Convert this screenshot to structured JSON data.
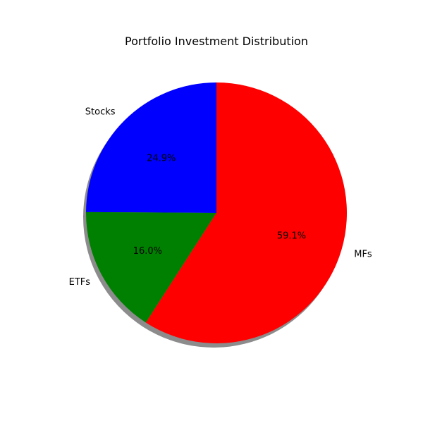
{
  "chart_data": {
    "type": "pie",
    "title": "Portfolio Investment Distribution",
    "start_angle_deg": 90,
    "direction": "counterclockwise",
    "shadow": true,
    "slices": [
      {
        "label": "Stocks",
        "value": 24.9,
        "percent_label": "24.9%",
        "color": "#0000ff"
      },
      {
        "label": "ETFs",
        "value": 16.0,
        "percent_label": "16.0%",
        "color": "#008000"
      },
      {
        "label": "MFs",
        "value": 59.1,
        "percent_label": "59.1%",
        "color": "#ff0000"
      }
    ]
  }
}
